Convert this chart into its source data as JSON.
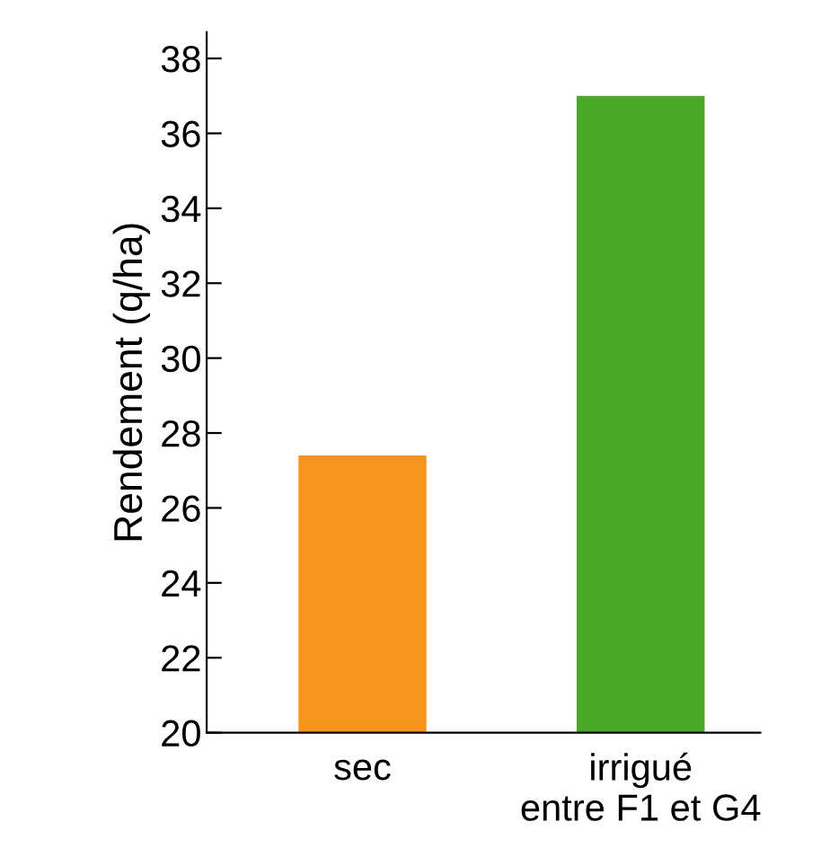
{
  "chart_data": {
    "type": "bar",
    "ylabel": "Rendement (q/ha)",
    "categories": [
      "sec",
      "irrigué\nentre F1 et G4"
    ],
    "values": [
      27.4,
      37.0
    ],
    "colors": [
      "#f7941d",
      "#4aa829"
    ],
    "ylim": [
      20,
      38.7
    ],
    "yticks": [
      20,
      22,
      24,
      26,
      28,
      30,
      32,
      34,
      36,
      38
    ],
    "grid": false,
    "legend": false
  }
}
